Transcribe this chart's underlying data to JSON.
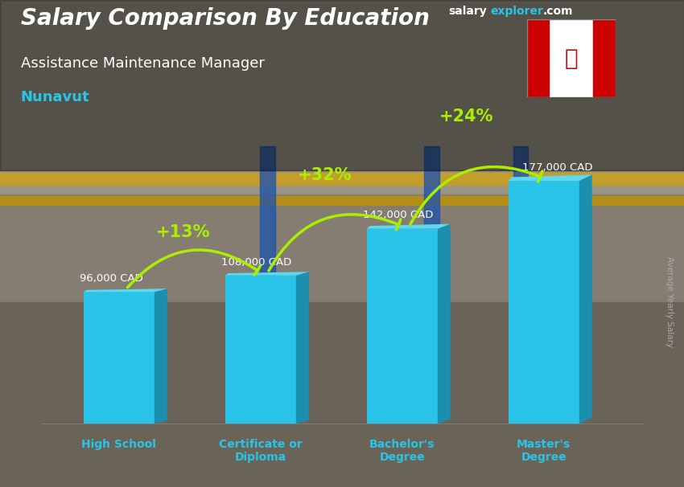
{
  "title": "Salary Comparison By Education",
  "subtitle_job": "Assistance Maintenance Manager",
  "subtitle_location": "Nunavut",
  "ylabel": "Average Yearly Salary",
  "categories": [
    "High School",
    "Certificate or\nDiploma",
    "Bachelor's\nDegree",
    "Master's\nDegree"
  ],
  "values": [
    96000,
    108000,
    142000,
    177000
  ],
  "value_labels": [
    "96,000 CAD",
    "108,000 CAD",
    "142,000 CAD",
    "177,000 CAD"
  ],
  "pct_changes": [
    "+13%",
    "+32%",
    "+24%"
  ],
  "bar_face_color": "#29c4e8",
  "bar_right_color": "#1a8fb0",
  "bar_top_color": "#5dd8f0",
  "title_color": "#ffffff",
  "subtitle_job_color": "#ffffff",
  "subtitle_location_color": "#29c4e8",
  "value_label_color": "#ffffff",
  "pct_color": "#aaee00",
  "arrow_color": "#aaee00",
  "xticklabel_color": "#29c4e8",
  "bg_color": "#4a4a3a",
  "ylim_max": 220000,
  "bar_width": 0.5,
  "bar_spacing": 1.0
}
